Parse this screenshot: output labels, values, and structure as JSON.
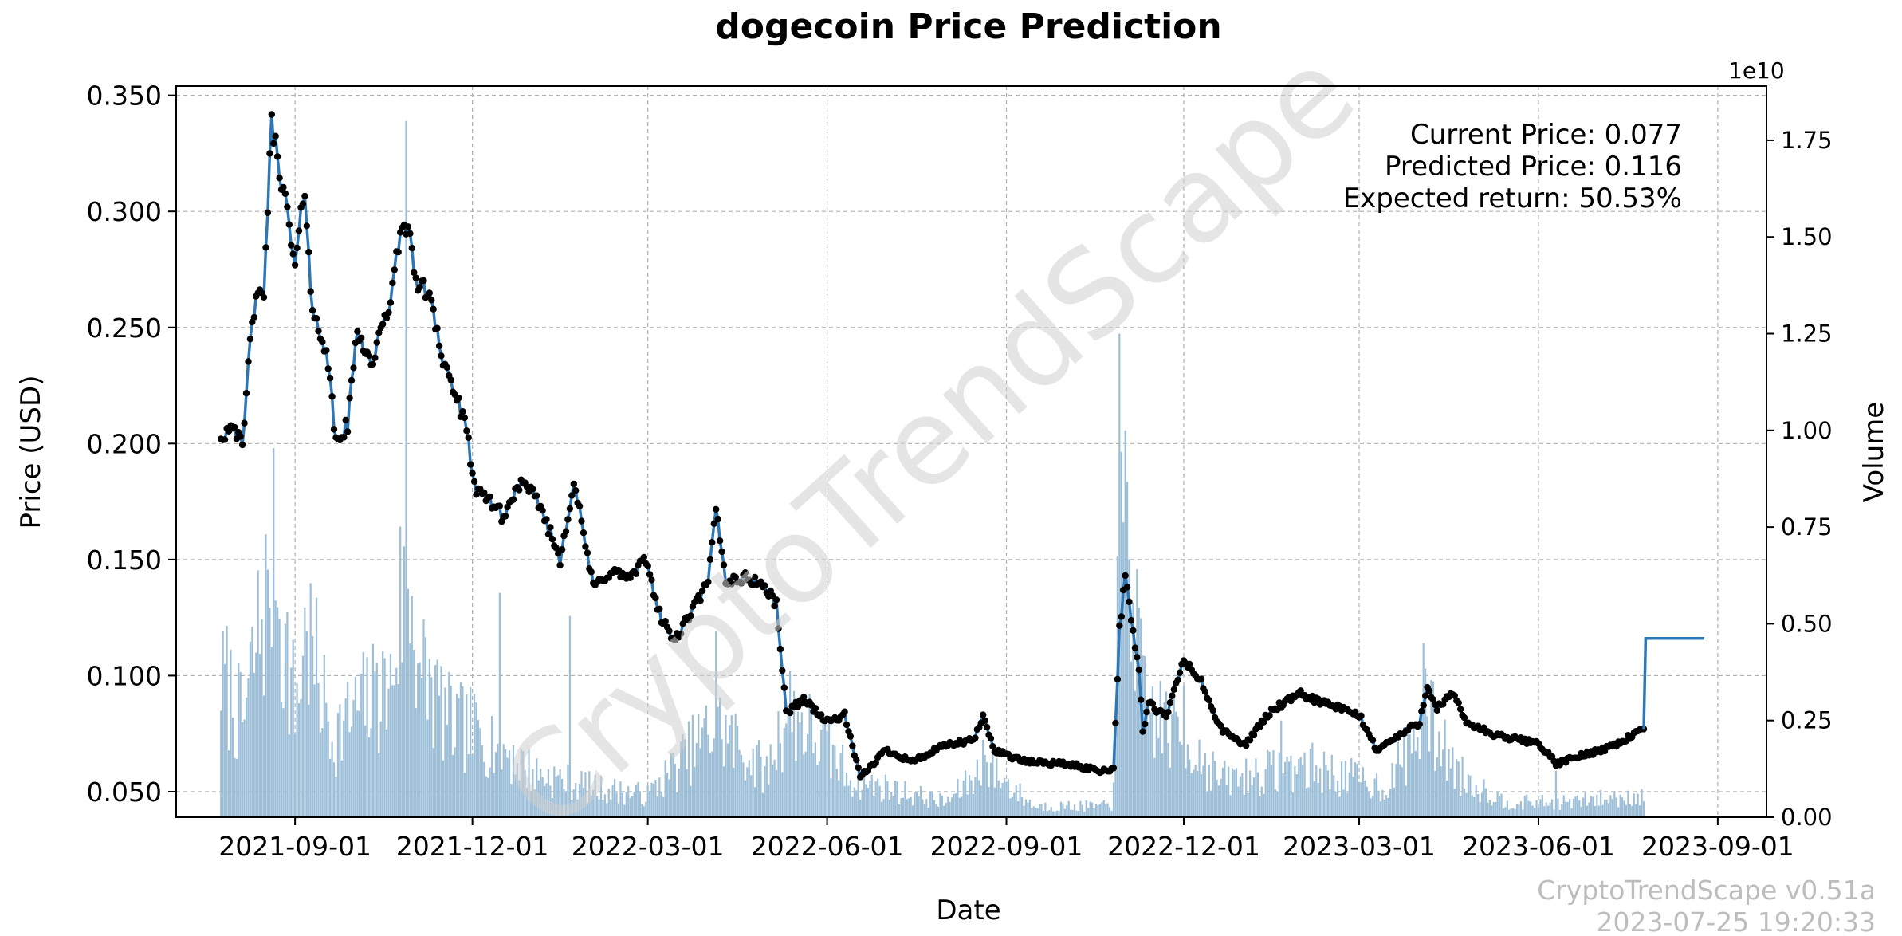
{
  "chart_data": {
    "type": "line",
    "title": "dogecoin Price Prediction",
    "xlabel": "Date",
    "ylabel": "Price (USD)",
    "y2label": "Volume",
    "y2_multiplier_label": "1e10",
    "grid": true,
    "x_range": [
      "2021-07-02",
      "2023-09-26"
    ],
    "ylim": [
      0.039,
      0.354
    ],
    "y2lim": [
      0,
      1.89
    ],
    "x_ticks": [
      "2021-09-01",
      "2021-12-01",
      "2022-03-01",
      "2022-06-01",
      "2022-09-01",
      "2022-12-01",
      "2023-03-01",
      "2023-06-01",
      "2023-09-01"
    ],
    "y_ticks": [
      "0.050",
      "0.100",
      "0.150",
      "0.200",
      "0.250",
      "0.300",
      "0.350"
    ],
    "y2_ticks": [
      "0.00",
      "0.25",
      "0.50",
      "0.75",
      "1.00",
      "1.25",
      "1.50",
      "1.75"
    ],
    "series": [
      {
        "name": "Price",
        "color": "#2f77b4",
        "marker_color": "#000000",
        "keypoints": [
          [
            "2021-07-25",
            0.202
          ],
          [
            "2021-07-31",
            0.21
          ],
          [
            "2021-08-05",
            0.197
          ],
          [
            "2021-08-10",
            0.256
          ],
          [
            "2021-08-16",
            0.266
          ],
          [
            "2021-08-20",
            0.338
          ],
          [
            "2021-08-26",
            0.31
          ],
          [
            "2021-09-01",
            0.275
          ],
          [
            "2021-09-06",
            0.311
          ],
          [
            "2021-09-10",
            0.255
          ],
          [
            "2021-09-17",
            0.242
          ],
          [
            "2021-09-22",
            0.2
          ],
          [
            "2021-09-28",
            0.208
          ],
          [
            "2021-10-03",
            0.25
          ],
          [
            "2021-10-10",
            0.234
          ],
          [
            "2021-10-18",
            0.255
          ],
          [
            "2021-10-23",
            0.278
          ],
          [
            "2021-10-27",
            0.299
          ],
          [
            "2021-11-03",
            0.268
          ],
          [
            "2021-11-10",
            0.264
          ],
          [
            "2021-11-15",
            0.238
          ],
          [
            "2021-11-22",
            0.222
          ],
          [
            "2021-11-28",
            0.205
          ],
          [
            "2021-12-03",
            0.178
          ],
          [
            "2021-12-10",
            0.176
          ],
          [
            "2021-12-17",
            0.168
          ],
          [
            "2021-12-25",
            0.183
          ],
          [
            "2022-01-04",
            0.175
          ],
          [
            "2022-01-15",
            0.15
          ],
          [
            "2022-01-22",
            0.184
          ],
          [
            "2022-02-01",
            0.138
          ],
          [
            "2022-02-10",
            0.145
          ],
          [
            "2022-02-20",
            0.142
          ],
          [
            "2022-02-28",
            0.15
          ],
          [
            "2022-03-08",
            0.124
          ],
          [
            "2022-03-15",
            0.115
          ],
          [
            "2022-03-25",
            0.13
          ],
          [
            "2022-04-01",
            0.14
          ],
          [
            "2022-04-05",
            0.172
          ],
          [
            "2022-04-10",
            0.141
          ],
          [
            "2022-04-20",
            0.142
          ],
          [
            "2022-04-28",
            0.14
          ],
          [
            "2022-05-06",
            0.131
          ],
          [
            "2022-05-11",
            0.084
          ],
          [
            "2022-05-20",
            0.09
          ],
          [
            "2022-06-01",
            0.08
          ],
          [
            "2022-06-10",
            0.083
          ],
          [
            "2022-06-18",
            0.056
          ],
          [
            "2022-07-01",
            0.068
          ],
          [
            "2022-07-15",
            0.063
          ],
          [
            "2022-08-01",
            0.07
          ],
          [
            "2022-08-15",
            0.072
          ],
          [
            "2022-08-20",
            0.082
          ],
          [
            "2022-08-26",
            0.068
          ],
          [
            "2022-09-10",
            0.063
          ],
          [
            "2022-10-01",
            0.062
          ],
          [
            "2022-10-20",
            0.059
          ],
          [
            "2022-10-26",
            0.06
          ],
          [
            "2022-10-29",
            0.12
          ],
          [
            "2022-11-01",
            0.142
          ],
          [
            "2022-11-08",
            0.102
          ],
          [
            "2022-11-10",
            0.076
          ],
          [
            "2022-11-13",
            0.088
          ],
          [
            "2022-11-22",
            0.082
          ],
          [
            "2022-12-01",
            0.107
          ],
          [
            "2022-12-10",
            0.097
          ],
          [
            "2022-12-20",
            0.077
          ],
          [
            "2023-01-01",
            0.07
          ],
          [
            "2023-01-15",
            0.085
          ],
          [
            "2023-01-30",
            0.092
          ],
          [
            "2023-02-15",
            0.087
          ],
          [
            "2023-03-01",
            0.083
          ],
          [
            "2023-03-10",
            0.068
          ],
          [
            "2023-03-25",
            0.076
          ],
          [
            "2023-04-01",
            0.08
          ],
          [
            "2023-04-05",
            0.096
          ],
          [
            "2023-04-10",
            0.086
          ],
          [
            "2023-04-18",
            0.092
          ],
          [
            "2023-04-25",
            0.08
          ],
          [
            "2023-05-10",
            0.074
          ],
          [
            "2023-06-01",
            0.071
          ],
          [
            "2023-06-10",
            0.062
          ],
          [
            "2023-06-25",
            0.066
          ],
          [
            "2023-07-10",
            0.07
          ],
          [
            "2023-07-25",
            0.077
          ]
        ]
      },
      {
        "name": "Prediction",
        "color": "#2f77b4",
        "points": [
          [
            "2023-07-25",
            0.077
          ],
          [
            "2023-07-26",
            0.116
          ],
          [
            "2023-08-25",
            0.116
          ]
        ]
      },
      {
        "name": "Volume",
        "type": "bar",
        "axis": "right",
        "color": "#9ebfd8",
        "units": "1e10",
        "keypoints": [
          [
            "2021-07-25",
            0.4
          ],
          [
            "2021-08-05",
            0.25
          ],
          [
            "2021-08-15",
            0.55
          ],
          [
            "2021-08-20",
            0.7
          ],
          [
            "2021-09-01",
            0.3
          ],
          [
            "2021-09-07",
            0.5
          ],
          [
            "2021-09-20",
            0.22
          ],
          [
            "2021-10-05",
            0.3
          ],
          [
            "2021-10-20",
            0.35
          ],
          [
            "2021-10-28",
            0.7
          ],
          [
            "2021-11-05",
            0.4
          ],
          [
            "2021-11-20",
            0.25
          ],
          [
            "2021-12-10",
            0.22
          ],
          [
            "2022-01-01",
            0.12
          ],
          [
            "2022-02-01",
            0.08
          ],
          [
            "2022-03-01",
            0.06
          ],
          [
            "2022-04-05",
            0.25
          ],
          [
            "2022-05-01",
            0.12
          ],
          [
            "2022-05-12",
            0.3
          ],
          [
            "2022-06-15",
            0.1
          ],
          [
            "2022-08-01",
            0.04
          ],
          [
            "2022-08-22",
            0.14
          ],
          [
            "2022-09-15",
            0.03
          ],
          [
            "2022-10-25",
            0.03
          ],
          [
            "2022-10-30",
            0.8
          ],
          [
            "2022-11-02",
            0.85
          ],
          [
            "2022-11-10",
            0.3
          ],
          [
            "2022-12-01",
            0.22
          ],
          [
            "2022-12-20",
            0.1
          ],
          [
            "2023-02-01",
            0.14
          ],
          [
            "2023-03-15",
            0.08
          ],
          [
            "2023-04-05",
            0.28
          ],
          [
            "2023-04-20",
            0.12
          ],
          [
            "2023-05-15",
            0.04
          ],
          [
            "2023-06-15",
            0.04
          ],
          [
            "2023-07-25",
            0.06
          ]
        ],
        "spikes": [
          [
            "2021-07-26",
            0.48
          ],
          [
            "2021-08-18",
            0.64
          ],
          [
            "2021-08-22",
            0.56
          ],
          [
            "2021-09-07",
            0.48
          ],
          [
            "2021-10-13",
            0.4
          ],
          [
            "2021-10-27",
            0.7
          ],
          [
            "2021-10-28",
            1.8
          ],
          [
            "2021-11-05",
            0.36
          ],
          [
            "2021-12-15",
            0.58
          ],
          [
            "2022-01-20",
            0.52
          ],
          [
            "2022-04-05",
            0.48
          ],
          [
            "2022-08-20",
            0.2
          ],
          [
            "2022-10-29",
            1.25
          ],
          [
            "2022-11-01",
            1.0
          ],
          [
            "2022-12-01",
            0.34
          ],
          [
            "2023-01-20",
            0.25
          ],
          [
            "2023-04-03",
            0.45
          ],
          [
            "2023-04-20",
            0.15
          ],
          [
            "2023-06-10",
            0.12
          ]
        ]
      }
    ],
    "annotations": {
      "current_price": "Current Price: 0.077",
      "predicted_price": "Predicted Price: 0.116",
      "expected_return": "Expected return: 50.53%"
    }
  },
  "watermark": "CryptoTrendScape",
  "footer": {
    "version": "CryptoTrendScape v0.51a",
    "timestamp": "2023-07-25 19:20:33"
  }
}
